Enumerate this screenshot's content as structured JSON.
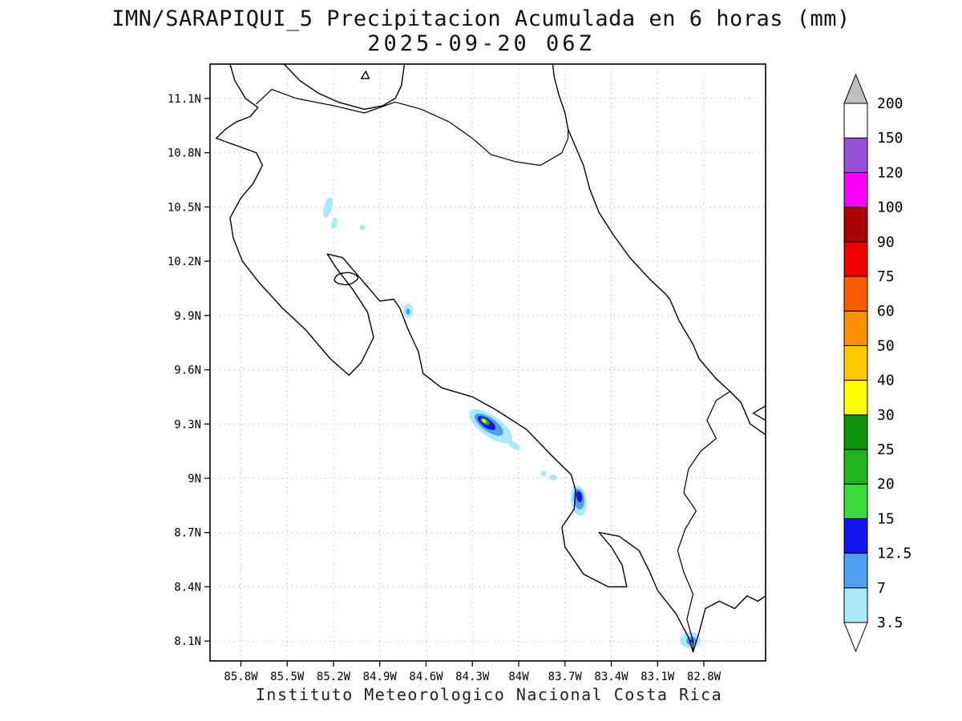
{
  "header": {
    "title_line1": "IMN/SARAPIQUI_5 Precipitacion Acumulada en 6 horas (mm)",
    "title_line2": "2025-09-20 06Z"
  },
  "footer": {
    "caption": "Instituto Meteorologico Nacional Costa Rica"
  },
  "chart_data": {
    "type": "map-contour",
    "title": "IMN/SARAPIQUI_5 Precipitacion Acumulada en 6 horas (mm)",
    "valid_time": "2025-09-20 06Z",
    "units": "mm",
    "region": "Costa Rica",
    "grid": "dotted",
    "axes": {
      "lat_range": [
        7.99,
        11.29
      ],
      "lon_range_w": [
        86.0,
        82.4
      ],
      "lat_ticks": [
        {
          "value": 11.1,
          "label": "11.1N"
        },
        {
          "value": 10.8,
          "label": "10.8N"
        },
        {
          "value": 10.5,
          "label": "10.5N"
        },
        {
          "value": 10.2,
          "label": "10.2N"
        },
        {
          "value": 9.9,
          "label": "9.9N"
        },
        {
          "value": 9.6,
          "label": "9.6N"
        },
        {
          "value": 9.3,
          "label": "9.3N"
        },
        {
          "value": 9.0,
          "label": "9N"
        },
        {
          "value": 8.7,
          "label": "8.7N"
        },
        {
          "value": 8.4,
          "label": "8.4N"
        },
        {
          "value": 8.1,
          "label": "8.1N"
        }
      ],
      "lon_ticks": [
        {
          "value": 85.8,
          "label": "85.8W"
        },
        {
          "value": 85.5,
          "label": "85.5W"
        },
        {
          "value": 85.2,
          "label": "85.2W"
        },
        {
          "value": 84.9,
          "label": "84.9W"
        },
        {
          "value": 84.6,
          "label": "84.6W"
        },
        {
          "value": 84.3,
          "label": "84.3W"
        },
        {
          "value": 84.0,
          "label": "84W"
        },
        {
          "value": 83.7,
          "label": "83.7W"
        },
        {
          "value": 83.4,
          "label": "83.4W"
        },
        {
          "value": 83.1,
          "label": "83.1W"
        },
        {
          "value": 82.8,
          "label": "82.8W"
        }
      ]
    },
    "colorbar": {
      "levels": [
        3.5,
        7,
        12.5,
        15,
        20,
        25,
        30,
        40,
        50,
        60,
        75,
        90,
        100,
        120,
        150,
        200
      ],
      "labels": [
        "3.5",
        "7",
        "12.5",
        "15",
        "20",
        "25",
        "30",
        "40",
        "50",
        "60",
        "75",
        "90",
        "100",
        "120",
        "150",
        "200"
      ],
      "segment_colors": [
        "#aaeaf6",
        "#4f9ff2",
        "#1414ec",
        "#3ada3a",
        "#1fb41f",
        "#0c920c",
        "#fefe00",
        "#fec800",
        "#fe9000",
        "#fe5a00",
        "#f00000",
        "#ac0000",
        "#fa00fa",
        "#9b4fd6",
        "#fefefe"
      ],
      "below_color": "#ffffff",
      "above_color": "#bfbfbf"
    },
    "precip_features": [
      {
        "lon_w": 85.24,
        "lat_n": 10.5,
        "max_bin_mm": "3.5-7"
      },
      {
        "lon_w": 85.02,
        "lat_n": 10.39,
        "max_bin_mm": "3.5-7"
      },
      {
        "lon_w": 84.99,
        "lat_n": 10.07,
        "max_bin_mm": "3.5-7"
      },
      {
        "lon_w": 84.72,
        "lat_n": 9.93,
        "max_bin_mm": "7-12.5"
      },
      {
        "lon_w": 84.19,
        "lat_n": 9.3,
        "max_bin_mm": "30-40"
      },
      {
        "lon_w": 83.8,
        "lat_n": 9.01,
        "max_bin_mm": "3.5-7"
      },
      {
        "lon_w": 83.61,
        "lat_n": 8.88,
        "max_bin_mm": "12.5-15"
      },
      {
        "lon_w": 82.88,
        "lat_n": 8.11,
        "max_bin_mm": "12.5-15"
      }
    ]
  }
}
